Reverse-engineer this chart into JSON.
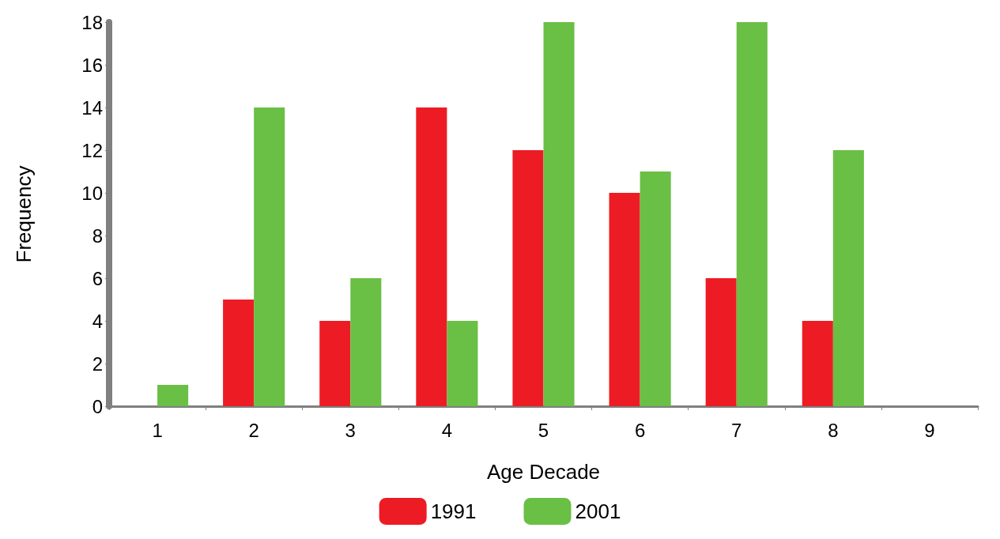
{
  "chart_data": {
    "type": "bar",
    "xlabel": "Age Decade",
    "ylabel": "Frequency",
    "categories": [
      "1",
      "2",
      "3",
      "4",
      "5",
      "6",
      "7",
      "8",
      "9"
    ],
    "series": [
      {
        "name": "1991",
        "color": "#ed1c24",
        "values": [
          0,
          5,
          4,
          14,
          12,
          10,
          6,
          4,
          0
        ]
      },
      {
        "name": "2001",
        "color": "#6abf45",
        "values": [
          1,
          14,
          6,
          4,
          18,
          11,
          18,
          12,
          0
        ]
      }
    ],
    "ylim": [
      0,
      18
    ],
    "yticks": [
      0,
      2,
      4,
      6,
      8,
      10,
      12,
      14,
      16,
      18
    ],
    "grid": false,
    "legend": "bottom"
  }
}
